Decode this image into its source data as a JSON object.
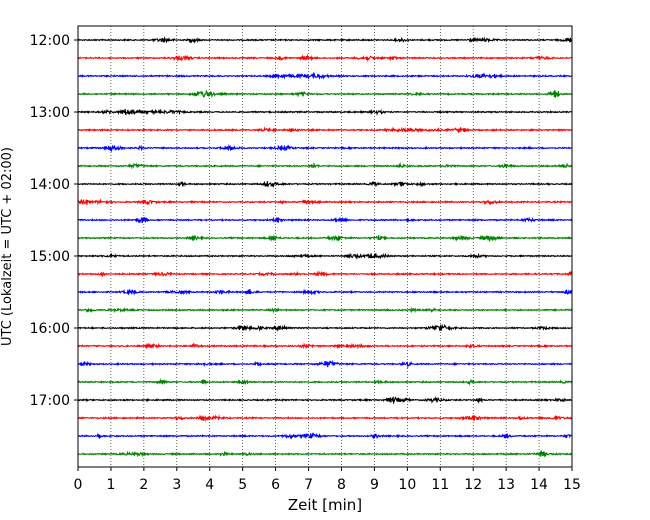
{
  "chart_data": {
    "type": "line",
    "title": "",
    "xlabel": "Zeit  [min]",
    "ylabel": "UTC (Lokalzeit = UTC + 02:00)",
    "xlim": [
      0,
      15
    ],
    "x_ticks": [
      "0",
      "1",
      "2",
      "3",
      "4",
      "5",
      "6",
      "7",
      "8",
      "9",
      "10",
      "11",
      "12",
      "13",
      "14",
      "15"
    ],
    "y_tick_labels": [
      "12:00",
      "13:00",
      "14:00",
      "15:00",
      "16:00",
      "17:00"
    ],
    "grid": "vertical dotted lines at each minute",
    "trace_colors": [
      "#000000",
      "#ff0000",
      "#0000ff",
      "#007f00"
    ],
    "trace_interval_minutes": 15,
    "start_time": "12:00",
    "end_time": "17:45",
    "trace_count": 24,
    "series": [
      {
        "start": "12:00",
        "color": "#000000"
      },
      {
        "start": "12:15",
        "color": "#ff0000"
      },
      {
        "start": "12:30",
        "color": "#0000ff"
      },
      {
        "start": "12:45",
        "color": "#007f00"
      },
      {
        "start": "13:00",
        "color": "#000000"
      },
      {
        "start": "13:15",
        "color": "#ff0000"
      },
      {
        "start": "13:30",
        "color": "#0000ff"
      },
      {
        "start": "13:45",
        "color": "#007f00"
      },
      {
        "start": "14:00",
        "color": "#000000"
      },
      {
        "start": "14:15",
        "color": "#ff0000"
      },
      {
        "start": "14:30",
        "color": "#0000ff"
      },
      {
        "start": "14:45",
        "color": "#007f00"
      },
      {
        "start": "15:00",
        "color": "#000000"
      },
      {
        "start": "15:15",
        "color": "#ff0000"
      },
      {
        "start": "15:30",
        "color": "#0000ff"
      },
      {
        "start": "15:45",
        "color": "#007f00"
      },
      {
        "start": "16:00",
        "color": "#000000"
      },
      {
        "start": "16:15",
        "color": "#ff0000"
      },
      {
        "start": "16:30",
        "color": "#0000ff"
      },
      {
        "start": "16:45",
        "color": "#007f00"
      },
      {
        "start": "17:00",
        "color": "#000000"
      },
      {
        "start": "17:15",
        "color": "#ff0000"
      },
      {
        "start": "17:30",
        "color": "#0000ff"
      },
      {
        "start": "17:45",
        "color": "#007f00"
      }
    ]
  }
}
